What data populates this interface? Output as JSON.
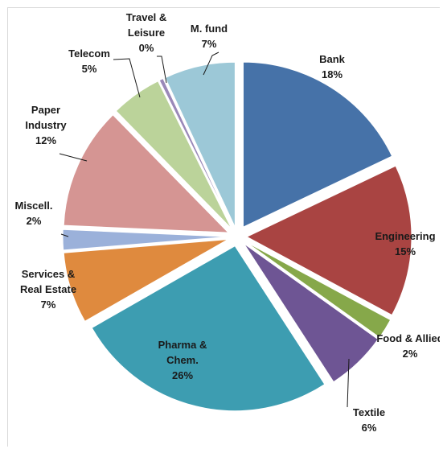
{
  "chart_data": {
    "type": "pie",
    "title": "",
    "slices": [
      {
        "label": [
          "Bank"
        ],
        "pct": "18%",
        "value": 18,
        "color": "#4672A8"
      },
      {
        "label": [
          "Engineering"
        ],
        "pct": "15%",
        "value": 15,
        "color": "#A94442"
      },
      {
        "label": [
          "Food & Allied"
        ],
        "pct": "2%",
        "value": 2,
        "color": "#86A84A"
      },
      {
        "label": [
          "Textile"
        ],
        "pct": "6%",
        "value": 6,
        "color": "#6E5594"
      },
      {
        "label": [
          "Pharma &",
          "Chem."
        ],
        "pct": "26%",
        "value": 26,
        "color": "#3D9DB1"
      },
      {
        "label": [
          "Services &",
          "Real Estate"
        ],
        "pct": "7%",
        "value": 7,
        "color": "#DF8A3E"
      },
      {
        "label": [
          "Miscell."
        ],
        "pct": "2%",
        "value": 2,
        "color": "#9BB1DA"
      },
      {
        "label": [
          "Paper",
          "Industry"
        ],
        "pct": "12%",
        "value": 12,
        "color": "#D59593"
      },
      {
        "label": [
          "Telecom"
        ],
        "pct": "5%",
        "value": 5,
        "color": "#BBD39A"
      },
      {
        "label": [
          "Travel &",
          "Leisure"
        ],
        "pct": "0%",
        "value": 0.4,
        "color": "#9A88B8"
      },
      {
        "label": [
          "M. fund"
        ],
        "pct": "7%",
        "value": 7,
        "color": "#9CC8D7"
      }
    ]
  }
}
